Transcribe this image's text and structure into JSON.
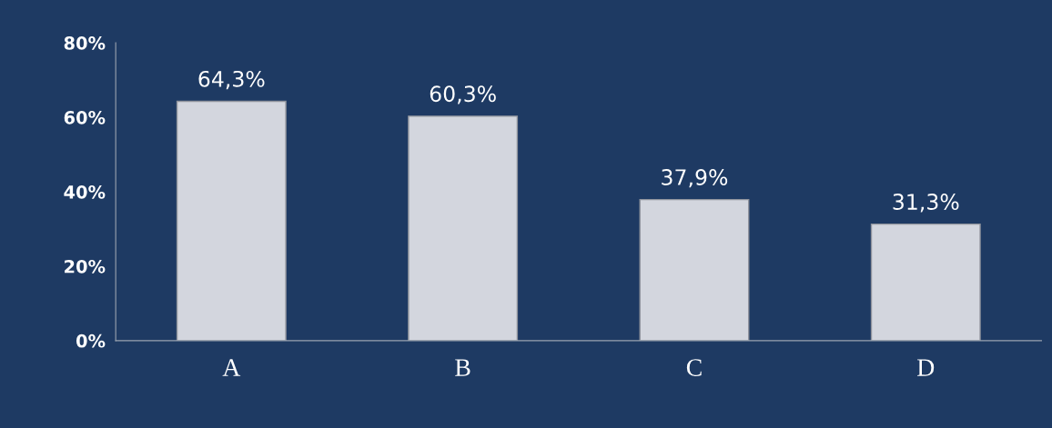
{
  "chart_data": {
    "type": "bar",
    "categories": [
      "A",
      "B",
      "C",
      "D"
    ],
    "values": [
      64.3,
      60.3,
      37.9,
      31.3
    ],
    "value_labels": [
      "64,3%",
      "60,3%",
      "37,9%",
      "31,3%"
    ],
    "color": "#d3d6de",
    "ylim": [
      0,
      80
    ],
    "yticks": [
      {
        "value": 0,
        "label": "0%"
      },
      {
        "value": 20,
        "label": "20%"
      },
      {
        "value": 40,
        "label": "40%"
      },
      {
        "value": 60,
        "label": "60%"
      },
      {
        "value": 80,
        "label": "80%"
      }
    ],
    "grid": false,
    "legend": false
  }
}
